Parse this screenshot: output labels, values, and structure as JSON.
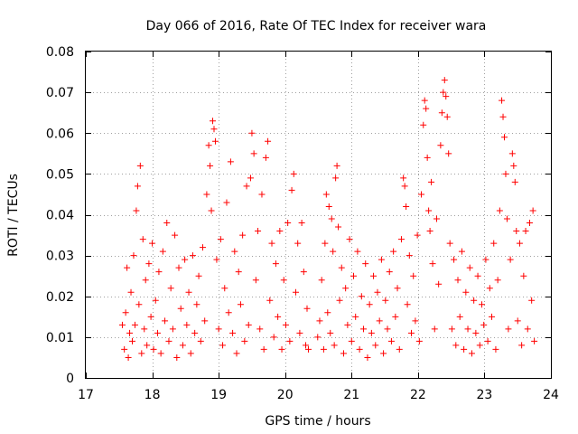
{
  "chart_data": {
    "type": "scatter",
    "title": "Day 066 of 2016, Rate Of TEC Index for receiver wara",
    "xlabel": "GPS time / hours",
    "ylabel": "ROTI / TECUs",
    "xlim": [
      17,
      24
    ],
    "ylim": [
      0,
      0.08
    ],
    "x_ticks": [
      17,
      18,
      19,
      20,
      21,
      22,
      23,
      24
    ],
    "y_ticks": [
      0,
      0.01,
      0.02,
      0.03,
      0.04,
      0.05,
      0.06,
      0.07,
      0.08
    ],
    "x_tick_labels": [
      "17",
      "18",
      "19",
      "20",
      "21",
      "22",
      "23",
      "24"
    ],
    "y_tick_labels": [
      "0",
      "0.01",
      "0.02",
      "0.03",
      "0.04",
      "0.05",
      "0.06",
      "0.07",
      "0.08"
    ],
    "grid": true,
    "marker": "+",
    "color": "#ff0000",
    "series": [
      {
        "name": "ROTI",
        "points": [
          [
            17.55,
            0.013
          ],
          [
            17.58,
            0.007
          ],
          [
            17.6,
            0.016
          ],
          [
            17.62,
            0.027
          ],
          [
            17.64,
            0.005
          ],
          [
            17.66,
            0.011
          ],
          [
            17.68,
            0.021
          ],
          [
            17.7,
            0.009
          ],
          [
            17.72,
            0.03
          ],
          [
            17.74,
            0.013
          ],
          [
            17.76,
            0.041
          ],
          [
            17.78,
            0.047
          ],
          [
            17.8,
            0.018
          ],
          [
            17.82,
            0.052
          ],
          [
            17.84,
            0.006
          ],
          [
            17.86,
            0.034
          ],
          [
            17.88,
            0.012
          ],
          [
            17.9,
            0.024
          ],
          [
            17.92,
            0.008
          ],
          [
            17.95,
            0.028
          ],
          [
            17.98,
            0.015
          ],
          [
            18.0,
            0.033
          ],
          [
            18.02,
            0.007
          ],
          [
            18.05,
            0.019
          ],
          [
            18.08,
            0.011
          ],
          [
            18.1,
            0.026
          ],
          [
            18.13,
            0.006
          ],
          [
            18.16,
            0.031
          ],
          [
            18.19,
            0.014
          ],
          [
            18.22,
            0.038
          ],
          [
            18.25,
            0.009
          ],
          [
            18.28,
            0.022
          ],
          [
            18.31,
            0.012
          ],
          [
            18.34,
            0.035
          ],
          [
            18.37,
            0.005
          ],
          [
            18.4,
            0.027
          ],
          [
            18.43,
            0.017
          ],
          [
            18.46,
            0.008
          ],
          [
            18.49,
            0.029
          ],
          [
            18.52,
            0.013
          ],
          [
            18.55,
            0.021
          ],
          [
            18.58,
            0.006
          ],
          [
            18.61,
            0.03
          ],
          [
            18.64,
            0.011
          ],
          [
            18.67,
            0.018
          ],
          [
            18.7,
            0.025
          ],
          [
            18.73,
            0.009
          ],
          [
            18.76,
            0.032
          ],
          [
            18.79,
            0.014
          ],
          [
            18.82,
            0.045
          ],
          [
            18.85,
            0.057
          ],
          [
            18.87,
            0.052
          ],
          [
            18.89,
            0.041
          ],
          [
            18.91,
            0.063
          ],
          [
            18.93,
            0.061
          ],
          [
            18.95,
            0.058
          ],
          [
            18.97,
            0.029
          ],
          [
            19.0,
            0.012
          ],
          [
            19.03,
            0.034
          ],
          [
            19.06,
            0.008
          ],
          [
            19.09,
            0.022
          ],
          [
            19.12,
            0.043
          ],
          [
            19.15,
            0.016
          ],
          [
            19.18,
            0.053
          ],
          [
            19.21,
            0.011
          ],
          [
            19.24,
            0.031
          ],
          [
            19.27,
            0.006
          ],
          [
            19.3,
            0.026
          ],
          [
            19.33,
            0.018
          ],
          [
            19.36,
            0.035
          ],
          [
            19.39,
            0.009
          ],
          [
            19.42,
            0.047
          ],
          [
            19.45,
            0.013
          ],
          [
            19.48,
            0.049
          ],
          [
            19.5,
            0.06
          ],
          [
            19.53,
            0.055
          ],
          [
            19.56,
            0.024
          ],
          [
            19.59,
            0.036
          ],
          [
            19.62,
            0.012
          ],
          [
            19.65,
            0.045
          ],
          [
            19.68,
            0.007
          ],
          [
            19.71,
            0.054
          ],
          [
            19.74,
            0.058
          ],
          [
            19.77,
            0.019
          ],
          [
            19.8,
            0.033
          ],
          [
            19.83,
            0.01
          ],
          [
            19.86,
            0.028
          ],
          [
            19.89,
            0.015
          ],
          [
            19.92,
            0.036
          ],
          [
            19.95,
            0.007
          ],
          [
            19.98,
            0.024
          ],
          [
            20.01,
            0.013
          ],
          [
            20.04,
            0.038
          ],
          [
            20.07,
            0.009
          ],
          [
            20.1,
            0.046
          ],
          [
            20.13,
            0.05
          ],
          [
            20.16,
            0.021
          ],
          [
            20.19,
            0.033
          ],
          [
            20.22,
            0.011
          ],
          [
            20.25,
            0.038
          ],
          [
            20.28,
            0.026
          ],
          [
            20.31,
            0.008
          ],
          [
            20.33,
            0.017
          ],
          [
            20.35,
            0.007
          ],
          [
            20.49,
            0.01
          ],
          [
            20.52,
            0.014
          ],
          [
            20.55,
            0.024
          ],
          [
            20.58,
            0.007
          ],
          [
            20.6,
            0.033
          ],
          [
            20.62,
            0.045
          ],
          [
            20.64,
            0.016
          ],
          [
            20.66,
            0.042
          ],
          [
            20.68,
            0.011
          ],
          [
            20.7,
            0.039
          ],
          [
            20.72,
            0.031
          ],
          [
            20.74,
            0.008
          ],
          [
            20.76,
            0.049
          ],
          [
            20.78,
            0.052
          ],
          [
            20.8,
            0.037
          ],
          [
            20.82,
            0.019
          ],
          [
            20.85,
            0.027
          ],
          [
            20.88,
            0.006
          ],
          [
            20.91,
            0.022
          ],
          [
            20.94,
            0.013
          ],
          [
            20.97,
            0.034
          ],
          [
            21.0,
            0.009
          ],
          [
            21.03,
            0.025
          ],
          [
            21.06,
            0.015
          ],
          [
            21.09,
            0.031
          ],
          [
            21.12,
            0.007
          ],
          [
            21.15,
            0.02
          ],
          [
            21.18,
            0.012
          ],
          [
            21.21,
            0.028
          ],
          [
            21.24,
            0.005
          ],
          [
            21.27,
            0.018
          ],
          [
            21.3,
            0.011
          ],
          [
            21.33,
            0.025
          ],
          [
            21.36,
            0.008
          ],
          [
            21.39,
            0.021
          ],
          [
            21.42,
            0.014
          ],
          [
            21.45,
            0.029
          ],
          [
            21.48,
            0.006
          ],
          [
            21.51,
            0.019
          ],
          [
            21.54,
            0.012
          ],
          [
            21.57,
            0.026
          ],
          [
            21.6,
            0.009
          ],
          [
            21.63,
            0.031
          ],
          [
            21.66,
            0.015
          ],
          [
            21.69,
            0.022
          ],
          [
            21.72,
            0.007
          ],
          [
            21.75,
            0.034
          ],
          [
            21.78,
            0.049
          ],
          [
            21.8,
            0.047
          ],
          [
            21.82,
            0.042
          ],
          [
            21.84,
            0.018
          ],
          [
            21.87,
            0.03
          ],
          [
            21.9,
            0.011
          ],
          [
            21.93,
            0.025
          ],
          [
            21.96,
            0.014
          ],
          [
            21.99,
            0.035
          ],
          [
            22.02,
            0.009
          ],
          [
            22.05,
            0.045
          ],
          [
            22.08,
            0.062
          ],
          [
            22.1,
            0.068
          ],
          [
            22.12,
            0.066
          ],
          [
            22.14,
            0.054
          ],
          [
            22.16,
            0.041
          ],
          [
            22.18,
            0.036
          ],
          [
            22.2,
            0.048
          ],
          [
            22.22,
            0.028
          ],
          [
            22.25,
            0.012
          ],
          [
            22.28,
            0.039
          ],
          [
            22.31,
            0.023
          ],
          [
            22.34,
            0.057
          ],
          [
            22.36,
            0.065
          ],
          [
            22.38,
            0.07
          ],
          [
            22.4,
            0.073
          ],
          [
            22.42,
            0.069
          ],
          [
            22.44,
            0.064
          ],
          [
            22.46,
            0.055
          ],
          [
            22.48,
            0.033
          ],
          [
            22.51,
            0.012
          ],
          [
            22.54,
            0.029
          ],
          [
            22.57,
            0.008
          ],
          [
            22.6,
            0.024
          ],
          [
            22.63,
            0.015
          ],
          [
            22.66,
            0.031
          ],
          [
            22.69,
            0.007
          ],
          [
            22.72,
            0.021
          ],
          [
            22.75,
            0.012
          ],
          [
            22.78,
            0.027
          ],
          [
            22.81,
            0.006
          ],
          [
            22.84,
            0.019
          ],
          [
            22.87,
            0.011
          ],
          [
            22.9,
            0.025
          ],
          [
            22.93,
            0.008
          ],
          [
            22.96,
            0.018
          ],
          [
            22.99,
            0.013
          ],
          [
            23.02,
            0.029
          ],
          [
            23.05,
            0.009
          ],
          [
            23.08,
            0.022
          ],
          [
            23.11,
            0.015
          ],
          [
            23.14,
            0.033
          ],
          [
            23.17,
            0.007
          ],
          [
            23.2,
            0.024
          ],
          [
            23.23,
            0.041
          ],
          [
            23.26,
            0.068
          ],
          [
            23.28,
            0.064
          ],
          [
            23.3,
            0.059
          ],
          [
            23.32,
            0.05
          ],
          [
            23.34,
            0.039
          ],
          [
            23.36,
            0.012
          ],
          [
            23.39,
            0.029
          ],
          [
            23.42,
            0.055
          ],
          [
            23.44,
            0.052
          ],
          [
            23.46,
            0.048
          ],
          [
            23.48,
            0.036
          ],
          [
            23.5,
            0.014
          ],
          [
            23.53,
            0.033
          ],
          [
            23.56,
            0.008
          ],
          [
            23.59,
            0.025
          ],
          [
            23.62,
            0.036
          ],
          [
            23.65,
            0.012
          ],
          [
            23.68,
            0.038
          ],
          [
            23.71,
            0.019
          ],
          [
            23.73,
            0.041
          ],
          [
            23.75,
            0.009
          ]
        ]
      }
    ]
  }
}
